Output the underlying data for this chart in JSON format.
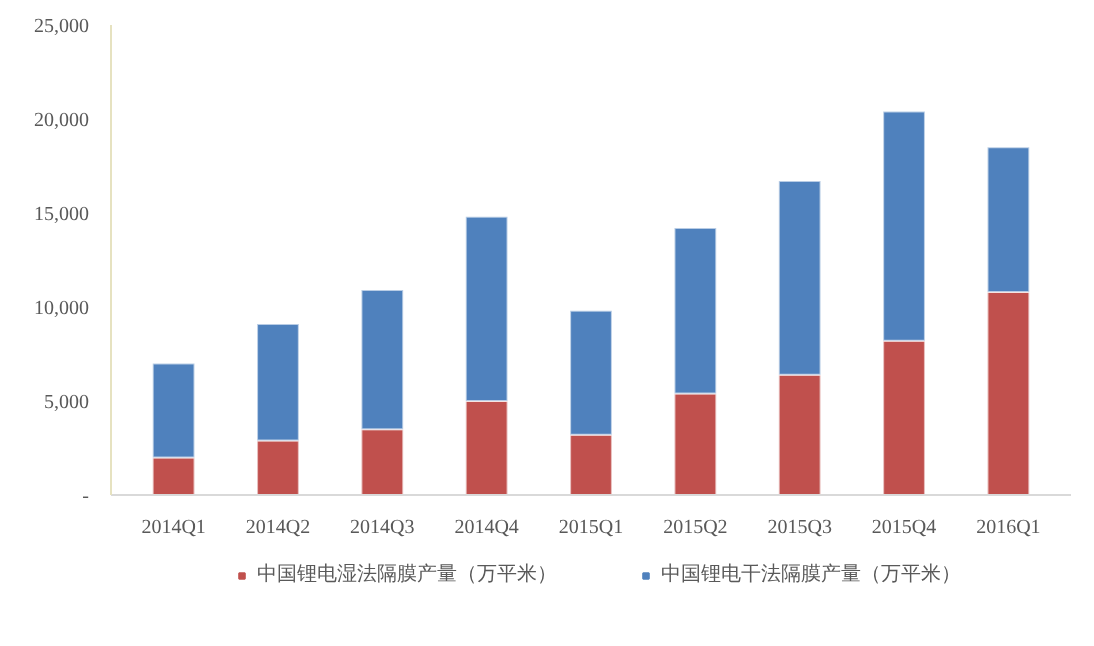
{
  "chart_data": {
    "type": "bar",
    "stacked": true,
    "categories": [
      "2014Q1",
      "2014Q2",
      "2014Q3",
      "2014Q4",
      "2015Q1",
      "2015Q2",
      "2015Q3",
      "2015Q4",
      "2016Q1"
    ],
    "series": [
      {
        "name": "中国锂电湿法隔膜产量（万平米）",
        "color": "#c0504d",
        "values": [
          2000,
          2900,
          3500,
          5000,
          3200,
          5400,
          6400,
          8200,
          10800
        ]
      },
      {
        "name": "中国锂电干法隔膜产量（万平米）",
        "color": "#4f81bd",
        "values": [
          5000,
          6200,
          7400,
          9800,
          6600,
          8800,
          10300,
          12200,
          7700
        ]
      }
    ],
    "ylim": [
      0,
      25000
    ],
    "yticks": [
      {
        "value": 0,
        "label": "-"
      },
      {
        "value": 5000,
        "label": "5,000"
      },
      {
        "value": 10000,
        "label": "10,000"
      },
      {
        "value": 15000,
        "label": "15,000"
      },
      {
        "value": 20000,
        "label": "20,000"
      },
      {
        "value": 25000,
        "label": "25,000"
      }
    ],
    "grid": false,
    "legend": "bottom"
  }
}
